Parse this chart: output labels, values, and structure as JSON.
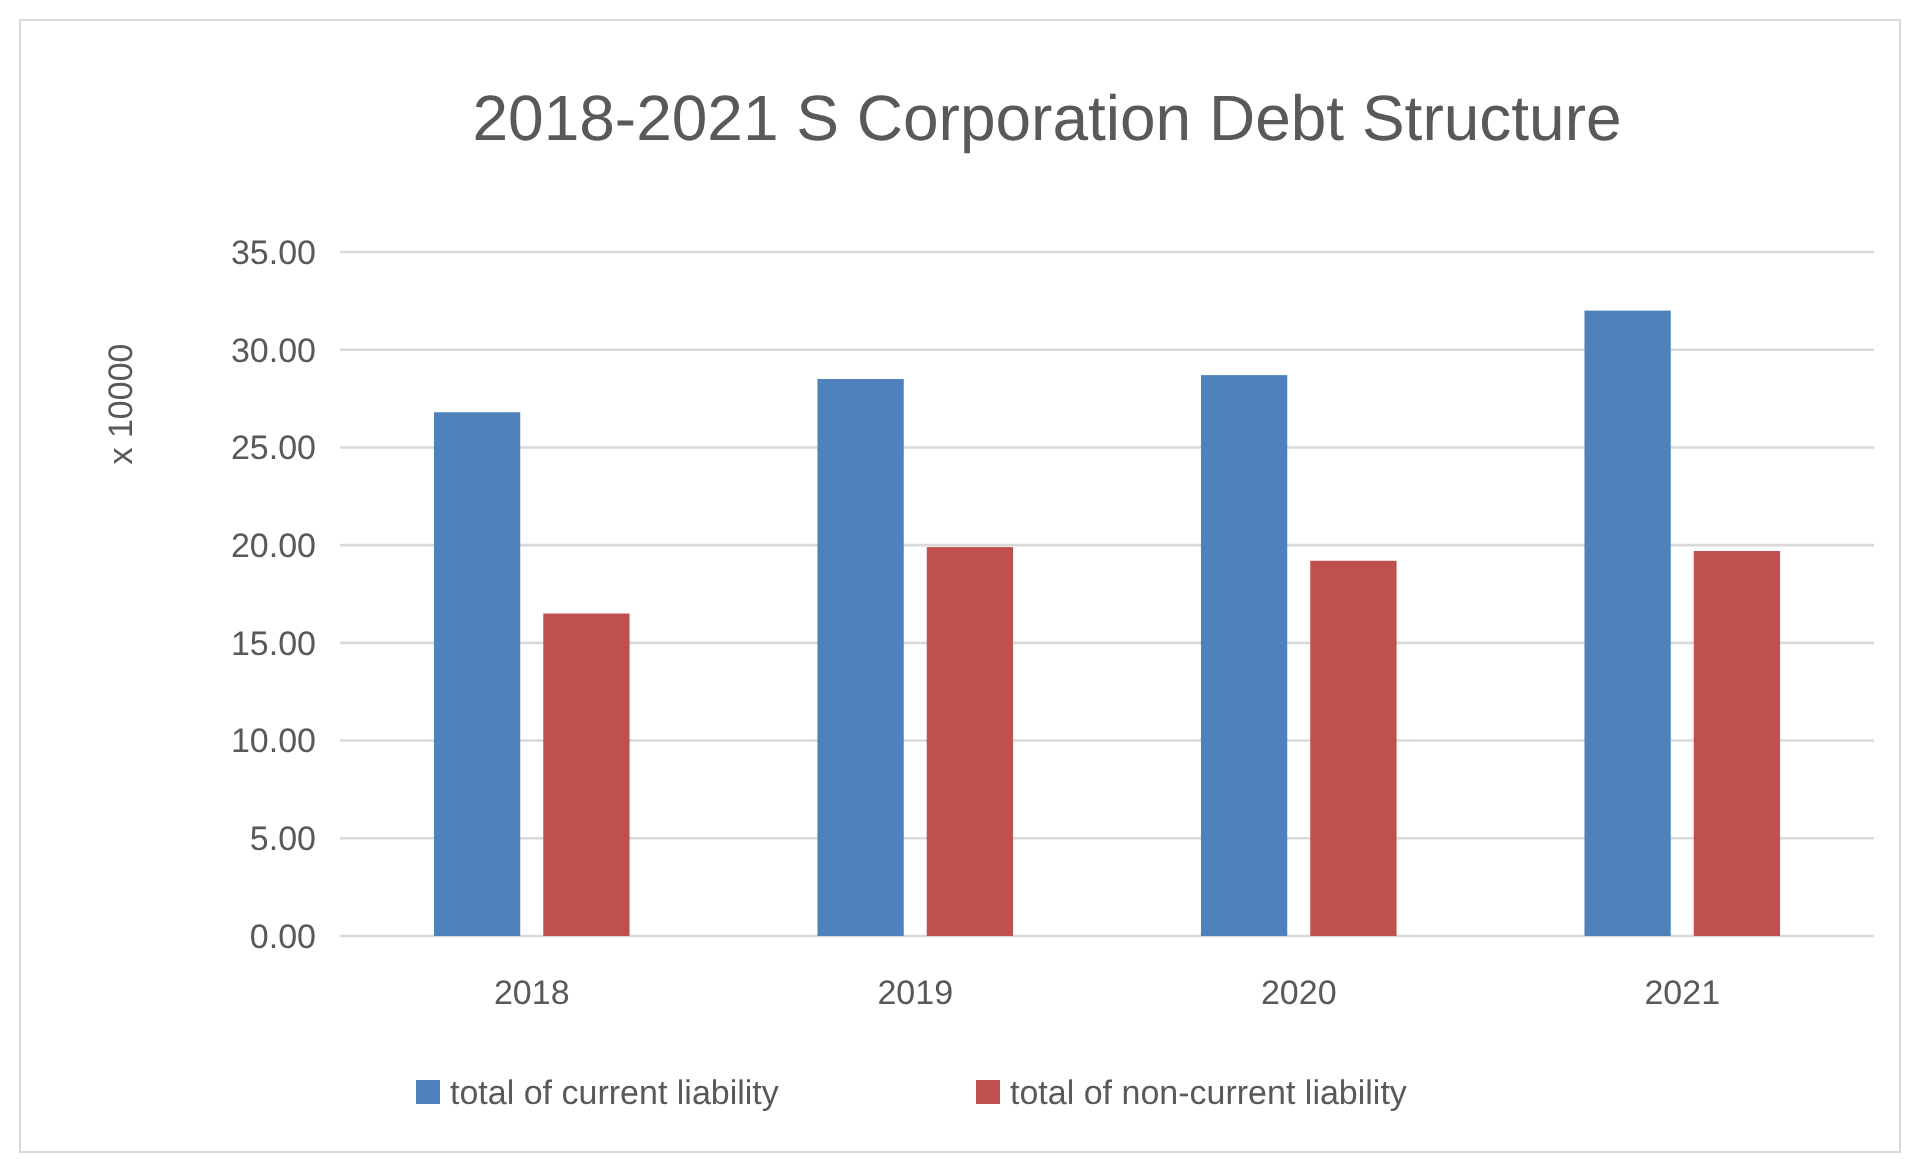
{
  "chart_data": {
    "type": "bar",
    "title": "2018-2021 S Corporation Debt Structure",
    "ylabel": "x 10000",
    "categories": [
      "2018",
      "2019",
      "2020",
      "2021"
    ],
    "series": [
      {
        "name": "total of current liability",
        "color": "#4f81bd",
        "values": [
          26.8,
          28.5,
          28.7,
          32.0
        ]
      },
      {
        "name": "total of non-current liability",
        "color": "#c0504d",
        "values": [
          16.5,
          19.9,
          19.2,
          19.7
        ]
      }
    ],
    "ylim": [
      0,
      35
    ],
    "yticks": [
      {
        "value": 0,
        "label": "0.00"
      },
      {
        "value": 5,
        "label": "5.00"
      },
      {
        "value": 10,
        "label": "10.00"
      },
      {
        "value": 15,
        "label": "15.00"
      },
      {
        "value": 20,
        "label": "20.00"
      },
      {
        "value": 25,
        "label": "25.00"
      },
      {
        "value": 30,
        "label": "30.00"
      },
      {
        "value": 35,
        "label": "35.00"
      }
    ],
    "grid": "y",
    "legend": "bottom"
  }
}
